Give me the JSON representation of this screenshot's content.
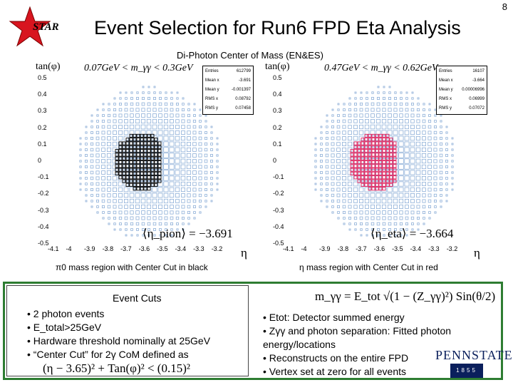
{
  "slide_number": "8",
  "logo_text": "STAR",
  "title": "Event Selection for Run6 FPD Eta Analysis",
  "subtitle": "Di-Photon Center of Mass (EN&ES)",
  "colors": {
    "pion": "#000000",
    "eta": "#e0245e",
    "background": "#8fb0d8",
    "frame": "#2e7d32"
  },
  "left_plot": {
    "title": "0.07GeV < m_γγ < 0.3GeV",
    "ylabel": "tan(φ)",
    "xlabel": "η",
    "stats": [
      [
        "Entries",
        "612799"
      ],
      [
        "Mean x",
        "-3.691"
      ],
      [
        "Mean y",
        "-0.001397"
      ],
      [
        "RMS x",
        "0.08792"
      ],
      [
        "RMS y",
        "0.07458"
      ]
    ],
    "mean_label": "⟨η_pion⟩ = −3.691",
    "caption": "π0 mass region with Center Cut in black"
  },
  "right_plot": {
    "title": "0.47GeV < m_γγ < 0.62GeV",
    "ylabel": "tan(φ)",
    "xlabel": "η",
    "stats": [
      [
        "Entries",
        "16107"
      ],
      [
        "Mean x",
        "-3.664"
      ],
      [
        "Mean y",
        "0.00006996"
      ],
      [
        "RMS x",
        "0.06999"
      ],
      [
        "RMS y",
        "0.07072"
      ]
    ],
    "mean_label": "⟨η_eta⟩ = −3.664",
    "caption": "η mass region with Center Cut in red"
  },
  "y_ticks": [
    "0.5",
    "0.4",
    "0.3",
    "0.2",
    "0.1",
    "0",
    "-0.1",
    "-0.2",
    "-0.3",
    "-0.4",
    "-0.5"
  ],
  "x_ticks": [
    "-4.1",
    "-4",
    "-3.9",
    "-3.8",
    "-3.7",
    "-3.6",
    "-3.5",
    "-3.4",
    "-3.3",
    "-3.2"
  ],
  "cuts": {
    "heading": "Event Cuts",
    "items": [
      "• 2 photon events",
      "• E_total>25GeV",
      "• Hardware threshold nominally at 25GeV",
      "• “Center Cut” for 2γ CoM defined as"
    ],
    "formula": "(η − 3.65)² + Tan(φ)² < (0.15)²"
  },
  "mass_formula": "m_γγ = E_tot √(1 − (Z_γγ)²) Sin(θ/2)",
  "notes": [
    "• Etot: Detector summed energy",
    "• Zγγ and photon separation: Fitted photon energy/locations",
    "• Reconstructs on the entire FPD",
    "• Vertex set at zero for all events"
  ],
  "pennstate": "PENNSTATE",
  "pennstate_year": "1855"
}
